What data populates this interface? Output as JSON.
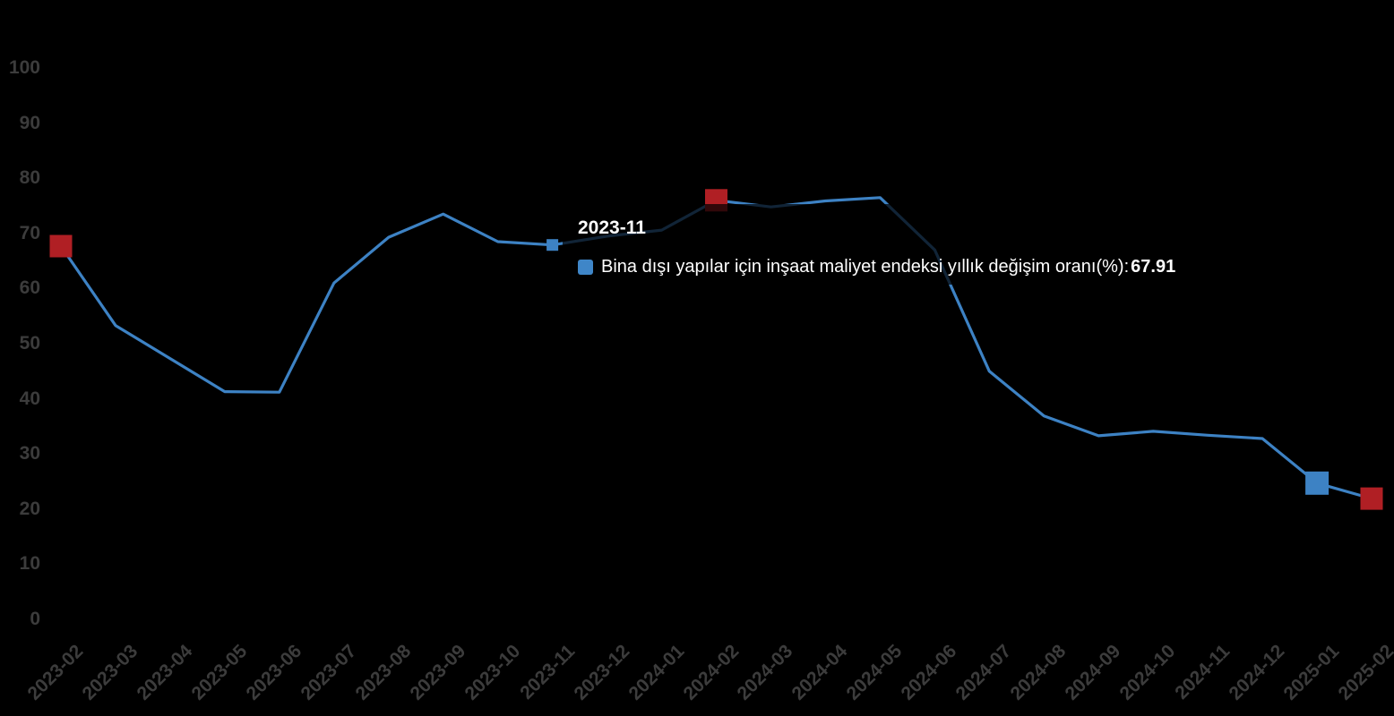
{
  "tooltip": {
    "title": "2023-11",
    "label": "Bina dışı yapılar için inşaat maliyet endeksi yıllık değişim oranı(%)",
    "separator": ": ",
    "value": "67.91",
    "swatch_color": "#3f86c8"
  },
  "chart_data": {
    "type": "line",
    "title": "",
    "xlabel": "",
    "ylabel": "",
    "categories": [
      "2023-02",
      "2023-03",
      "2023-04",
      "2023-05",
      "2023-06",
      "2023-07",
      "2023-08",
      "2023-09",
      "2023-10",
      "2023-11",
      "2023-12",
      "2024-01",
      "2024-02",
      "2024-03",
      "2024-04",
      "2024-05",
      "2024-06",
      "2024-07",
      "2024-08",
      "2024-09",
      "2024-10",
      "2024-11",
      "2024-12",
      "2025-01",
      "2025-02"
    ],
    "series": [
      {
        "name": "Bina dışı yapılar için inşaat maliyet endeksi yıllık değişim oranı(%)",
        "values": [
          67.7,
          53.3,
          47.3,
          41.3,
          41.2,
          61.0,
          69.3,
          73.5,
          68.5,
          67.91,
          69.5,
          70.6,
          76.0,
          74.8,
          75.9,
          76.5,
          67.0,
          45.0,
          36.9,
          33.3,
          34.1,
          33.4,
          32.8,
          24.7,
          21.9
        ]
      }
    ],
    "ylim": [
      0,
      100
    ],
    "yticks": [
      0,
      10,
      20,
      30,
      40,
      50,
      60,
      70,
      80,
      90,
      100
    ],
    "grid": false,
    "legend": "none",
    "line_color": "#3d82c4",
    "colors": {
      "background": "#000000",
      "line": "#3d82c4",
      "red_marker": "#b01f24",
      "blue_marker": "#3d82c4",
      "axis_text": "#3c3c3c",
      "tooltip_text": "#ffffff"
    },
    "highlight_markers": [
      {
        "category": "2023-02",
        "color": "#b01f24",
        "size": 25,
        "name": "red-square-marker"
      },
      {
        "category": "2024-02",
        "color": "#b01f24",
        "size": 25,
        "name": "red-square-marker"
      },
      {
        "category": "2025-01",
        "color": "#3d82c4",
        "size": 26,
        "name": "blue-square-marker"
      },
      {
        "category": "2025-02",
        "color": "#b01f24",
        "size": 25,
        "name": "red-square-marker"
      }
    ],
    "hover_point": {
      "category": "2023-11",
      "value": 67.91,
      "color": "#3d82c4",
      "size": 13
    }
  }
}
